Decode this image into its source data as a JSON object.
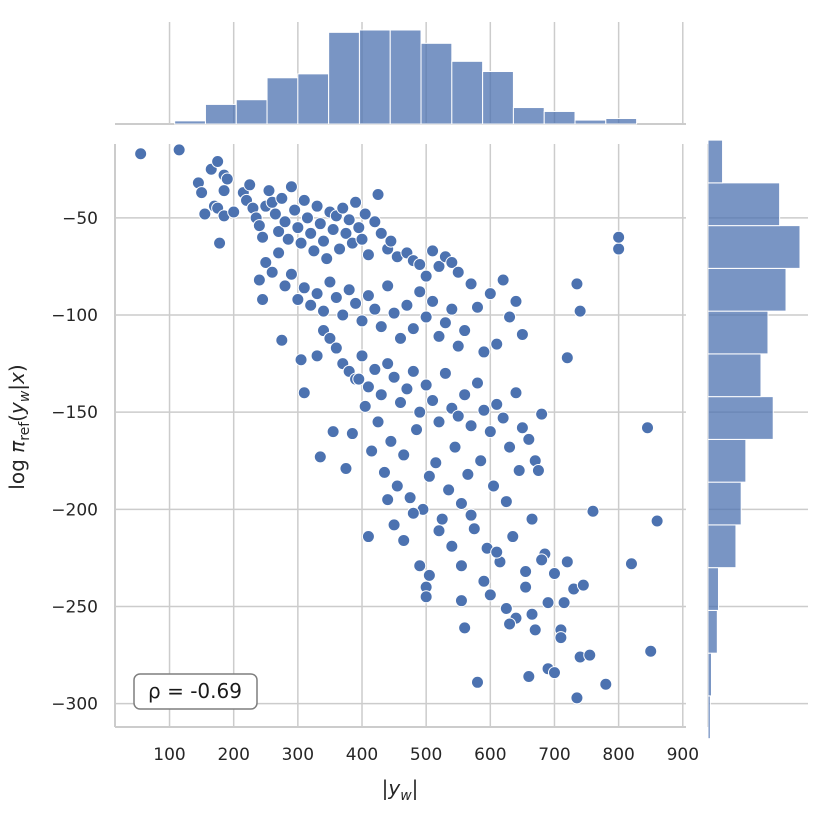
{
  "chart_data": {
    "type": "scatter",
    "xlabel": "|y_w|",
    "ylabel": "log π_ref(y_w|x)",
    "xlim": [
      15,
      905
    ],
    "ylim": [
      -312,
      -12
    ],
    "xticks": [
      "100",
      "200",
      "300",
      "400",
      "500",
      "600",
      "700",
      "800",
      "900"
    ],
    "yticks": [
      "−50",
      "−100",
      "−150",
      "−200",
      "−250",
      "−300"
    ],
    "annotation": "ρ = -0.69",
    "grid": true,
    "marginal_x": {
      "type": "histogram",
      "bin_edges": [
        108,
        156,
        204,
        252,
        300,
        348,
        396,
        444,
        492,
        540,
        588,
        636,
        684,
        732,
        780,
        828,
        876
      ],
      "counts": [
        4,
        25,
        31,
        59,
        64,
        117,
        120,
        120,
        103,
        80,
        67,
        21,
        16,
        5,
        7,
        0
      ]
    },
    "marginal_y": {
      "type": "histogram",
      "bin_edges": [
        -318,
        -296,
        -274,
        -252,
        -230,
        -208,
        -186,
        -164,
        -142,
        -120,
        -98,
        -76,
        -54,
        -32,
        -10
      ],
      "counts": [
        4,
        6,
        16,
        18,
        48,
        57,
        65,
        112,
        91,
        103,
        134,
        158,
        123,
        25
      ]
    },
    "points": [
      [
        55,
        -17
      ],
      [
        115,
        -15
      ],
      [
        145,
        -32
      ],
      [
        150,
        -37
      ],
      [
        155,
        -48
      ],
      [
        165,
        -25
      ],
      [
        170,
        -44
      ],
      [
        175,
        -21
      ],
      [
        175,
        -45
      ],
      [
        178,
        -63
      ],
      [
        185,
        -28
      ],
      [
        185,
        -49
      ],
      [
        190,
        -30
      ],
      [
        185,
        -36
      ],
      [
        200,
        -47
      ],
      [
        215,
        -37
      ],
      [
        220,
        -41
      ],
      [
        225,
        -33
      ],
      [
        230,
        -45
      ],
      [
        235,
        -50
      ],
      [
        240,
        -54
      ],
      [
        245,
        -60
      ],
      [
        250,
        -44
      ],
      [
        255,
        -36
      ],
      [
        260,
        -42
      ],
      [
        265,
        -48
      ],
      [
        270,
        -57
      ],
      [
        275,
        -40
      ],
      [
        280,
        -52
      ],
      [
        285,
        -61
      ],
      [
        290,
        -34
      ],
      [
        295,
        -46
      ],
      [
        300,
        -55
      ],
      [
        305,
        -63
      ],
      [
        310,
        -41
      ],
      [
        315,
        -50
      ],
      [
        320,
        -58
      ],
      [
        325,
        -67
      ],
      [
        330,
        -44
      ],
      [
        335,
        -53
      ],
      [
        340,
        -62
      ],
      [
        345,
        -71
      ],
      [
        350,
        -47
      ],
      [
        355,
        -56
      ],
      [
        360,
        -49
      ],
      [
        365,
        -66
      ],
      [
        370,
        -45
      ],
      [
        375,
        -58
      ],
      [
        380,
        -51
      ],
      [
        385,
        -63
      ],
      [
        390,
        -42
      ],
      [
        395,
        -55
      ],
      [
        400,
        -61
      ],
      [
        405,
        -48
      ],
      [
        410,
        -69
      ],
      [
        420,
        -52
      ],
      [
        425,
        -38
      ],
      [
        430,
        -58
      ],
      [
        440,
        -66
      ],
      [
        445,
        -62
      ],
      [
        455,
        -70
      ],
      [
        470,
        -68
      ],
      [
        480,
        -72
      ],
      [
        490,
        -74
      ],
      [
        500,
        -80
      ],
      [
        510,
        -67
      ],
      [
        520,
        -75
      ],
      [
        530,
        -70
      ],
      [
        540,
        -73
      ],
      [
        550,
        -78
      ],
      [
        240,
        -82
      ],
      [
        250,
        -73
      ],
      [
        260,
        -78
      ],
      [
        270,
        -68
      ],
      [
        280,
        -85
      ],
      [
        290,
        -79
      ],
      [
        300,
        -92
      ],
      [
        310,
        -86
      ],
      [
        320,
        -95
      ],
      [
        330,
        -89
      ],
      [
        340,
        -98
      ],
      [
        350,
        -83
      ],
      [
        360,
        -91
      ],
      [
        370,
        -100
      ],
      [
        380,
        -87
      ],
      [
        390,
        -94
      ],
      [
        400,
        -103
      ],
      [
        410,
        -90
      ],
      [
        420,
        -97
      ],
      [
        430,
        -106
      ],
      [
        440,
        -85
      ],
      [
        450,
        -99
      ],
      [
        460,
        -112
      ],
      [
        470,
        -95
      ],
      [
        480,
        -107
      ],
      [
        490,
        -88
      ],
      [
        500,
        -101
      ],
      [
        510,
        -93
      ],
      [
        520,
        -111
      ],
      [
        530,
        -104
      ],
      [
        540,
        -97
      ],
      [
        550,
        -116
      ],
      [
        560,
        -108
      ],
      [
        570,
        -84
      ],
      [
        580,
        -96
      ],
      [
        590,
        -119
      ],
      [
        600,
        -89
      ],
      [
        610,
        -115
      ],
      [
        620,
        -82
      ],
      [
        630,
        -101
      ],
      [
        640,
        -93
      ],
      [
        650,
        -110
      ],
      [
        245,
        -92
      ],
      [
        275,
        -113
      ],
      [
        305,
        -123
      ],
      [
        330,
        -121
      ],
      [
        340,
        -108
      ],
      [
        350,
        -112
      ],
      [
        360,
        -117
      ],
      [
        370,
        -125
      ],
      [
        380,
        -129
      ],
      [
        390,
        -133
      ],
      [
        400,
        -121
      ],
      [
        410,
        -137
      ],
      [
        420,
        -128
      ],
      [
        430,
        -141
      ],
      [
        440,
        -125
      ],
      [
        450,
        -132
      ],
      [
        460,
        -145
      ],
      [
        470,
        -138
      ],
      [
        480,
        -129
      ],
      [
        490,
        -150
      ],
      [
        500,
        -136
      ],
      [
        510,
        -144
      ],
      [
        520,
        -155
      ],
      [
        530,
        -130
      ],
      [
        540,
        -148
      ],
      [
        550,
        -152
      ],
      [
        560,
        -141
      ],
      [
        570,
        -157
      ],
      [
        580,
        -135
      ],
      [
        590,
        -149
      ],
      [
        600,
        -160
      ],
      [
        610,
        -146
      ],
      [
        620,
        -153
      ],
      [
        630,
        -168
      ],
      [
        640,
        -140
      ],
      [
        650,
        -158
      ],
      [
        660,
        -164
      ],
      [
        670,
        -175
      ],
      [
        680,
        -151
      ],
      [
        310,
        -140
      ],
      [
        335,
        -173
      ],
      [
        355,
        -160
      ],
      [
        375,
        -179
      ],
      [
        385,
        -161
      ],
      [
        395,
        -133
      ],
      [
        405,
        -147
      ],
      [
        415,
        -170
      ],
      [
        425,
        -155
      ],
      [
        435,
        -181
      ],
      [
        445,
        -165
      ],
      [
        455,
        -188
      ],
      [
        465,
        -172
      ],
      [
        475,
        -194
      ],
      [
        485,
        -159
      ],
      [
        495,
        -200
      ],
      [
        505,
        -183
      ],
      [
        515,
        -176
      ],
      [
        525,
        -205
      ],
      [
        535,
        -190
      ],
      [
        545,
        -168
      ],
      [
        555,
        -197
      ],
      [
        565,
        -182
      ],
      [
        575,
        -210
      ],
      [
        585,
        -175
      ],
      [
        595,
        -220
      ],
      [
        605,
        -188
      ],
      [
        615,
        -227
      ],
      [
        625,
        -196
      ],
      [
        635,
        -214
      ],
      [
        645,
        -180
      ],
      [
        655,
        -232
      ],
      [
        665,
        -205
      ],
      [
        675,
        -180
      ],
      [
        685,
        -223
      ],
      [
        410,
        -214
      ],
      [
        440,
        -195
      ],
      [
        450,
        -208
      ],
      [
        465,
        -216
      ],
      [
        480,
        -202
      ],
      [
        490,
        -229
      ],
      [
        500,
        -240
      ],
      [
        505,
        -234
      ],
      [
        520,
        -211
      ],
      [
        540,
        -219
      ],
      [
        555,
        -229
      ],
      [
        570,
        -203
      ],
      [
        590,
        -237
      ],
      [
        600,
        -244
      ],
      [
        610,
        -222
      ],
      [
        625,
        -251
      ],
      [
        640,
        -256
      ],
      [
        655,
        -240
      ],
      [
        665,
        -254
      ],
      [
        670,
        -262
      ],
      [
        680,
        -226
      ],
      [
        690,
        -248
      ],
      [
        700,
        -233
      ],
      [
        710,
        -262
      ],
      [
        720,
        -227
      ],
      [
        730,
        -241
      ],
      [
        500,
        -245
      ],
      [
        555,
        -247
      ],
      [
        560,
        -261
      ],
      [
        580,
        -289
      ],
      [
        630,
        -259
      ],
      [
        660,
        -286
      ],
      [
        690,
        -282
      ],
      [
        710,
        -266
      ],
      [
        735,
        -297
      ],
      [
        740,
        -276
      ],
      [
        755,
        -275
      ],
      [
        780,
        -290
      ],
      [
        735,
        -84
      ],
      [
        740,
        -98
      ],
      [
        720,
        -122
      ],
      [
        760,
        -201
      ],
      [
        800,
        -66
      ],
      [
        800,
        -60
      ],
      [
        820,
        -228
      ],
      [
        845,
        -158
      ],
      [
        850,
        -273
      ],
      [
        860,
        -206
      ],
      [
        745,
        -239
      ],
      [
        715,
        -248
      ],
      [
        700,
        -284
      ]
    ]
  }
}
